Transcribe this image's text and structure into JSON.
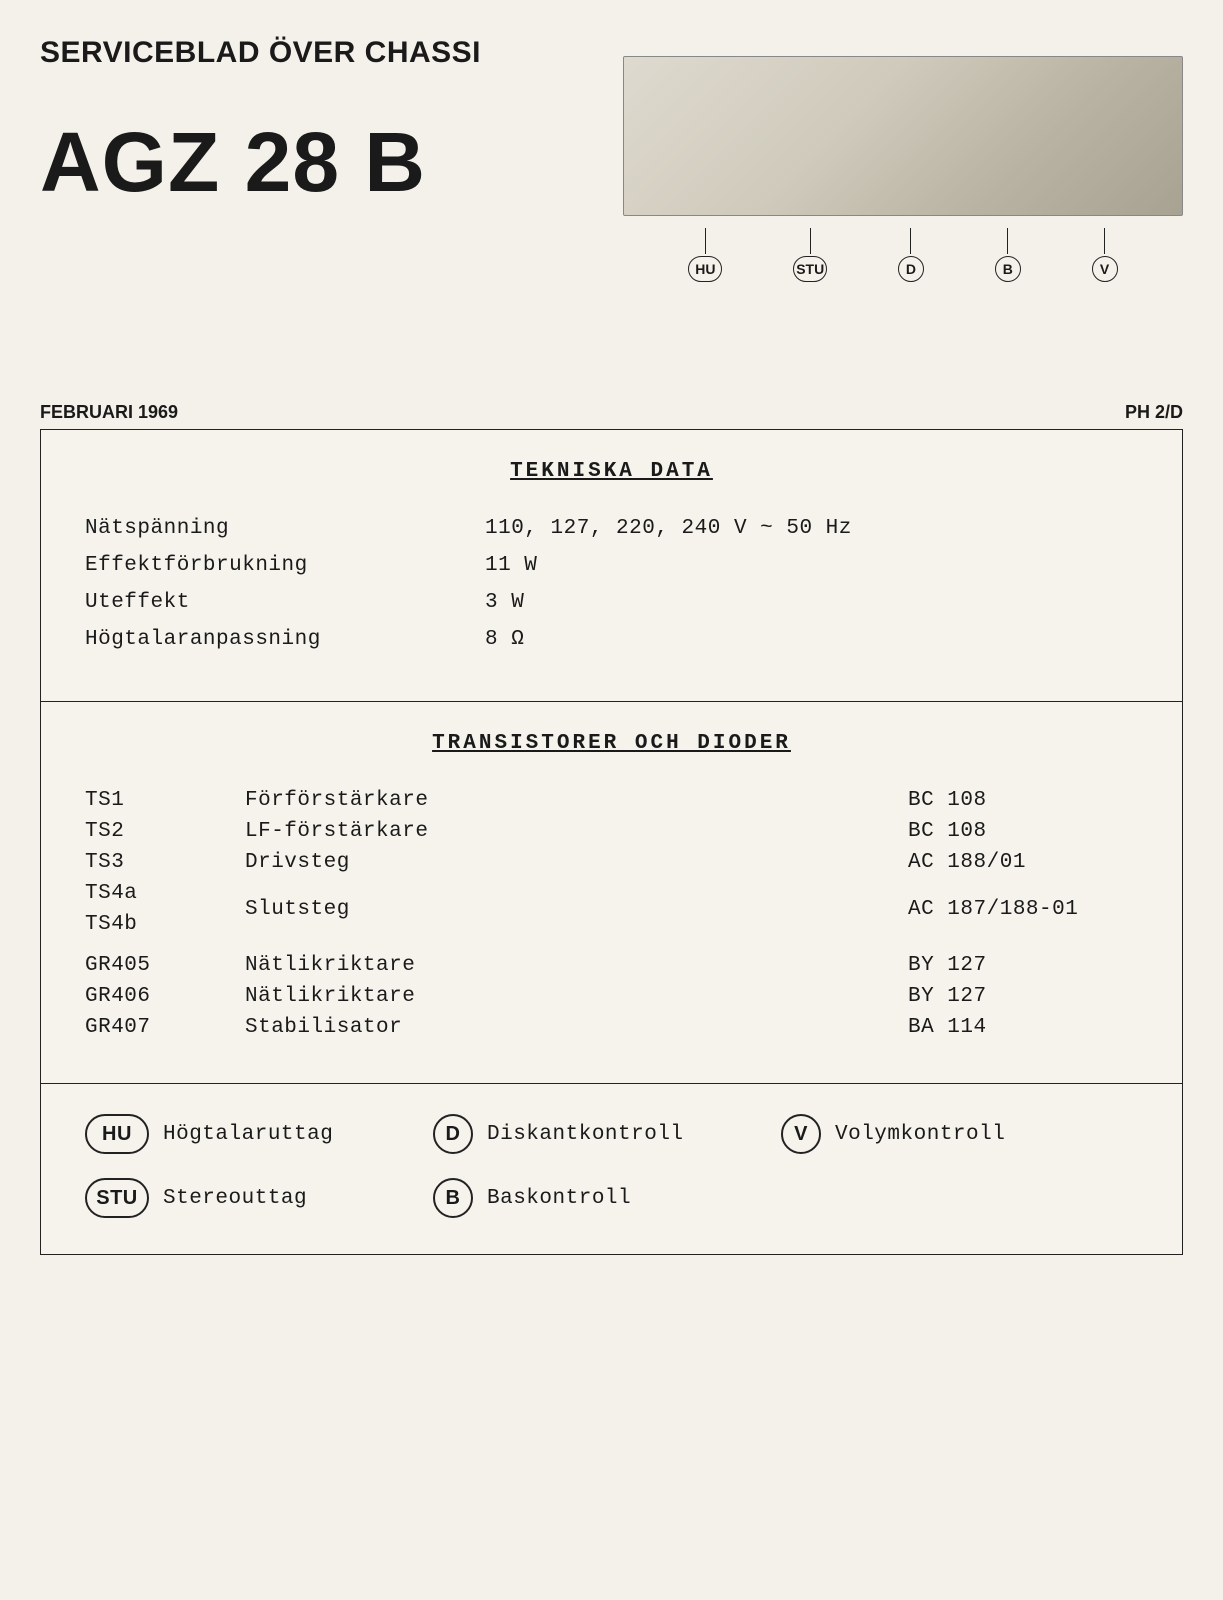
{
  "header": {
    "doc_title": "SERVICEBLAD ÖVER CHASSI",
    "model": "AGZ 28 B",
    "date": "FEBRUARI 1969",
    "code": "PH 2/D"
  },
  "chassi_labels": [
    {
      "sym": "HU",
      "shape": "oval"
    },
    {
      "sym": "STU",
      "shape": "oval"
    },
    {
      "sym": "D",
      "shape": "circ"
    },
    {
      "sym": "B",
      "shape": "circ"
    },
    {
      "sym": "V",
      "shape": "circ"
    }
  ],
  "tekniska": {
    "heading": "TEKNISKA DATA",
    "rows": [
      {
        "label": "Nätspänning",
        "val": "110, 127, 220, 240 V ~ 50 Hz"
      },
      {
        "label": "Effektförbrukning",
        "val": "11 W"
      },
      {
        "label": "Uteffekt",
        "val": "3 W"
      },
      {
        "label": "Högtalaranpassning",
        "val": "8 Ω"
      }
    ]
  },
  "transistors": {
    "heading": "TRANSISTORER OCH DIODER",
    "rows": [
      {
        "ref": "TS1",
        "desc": "Förförstärkare",
        "part": "BC 108"
      },
      {
        "ref": "TS2",
        "desc": "LF-förstärkare",
        "part": "BC 108"
      },
      {
        "ref": "TS3",
        "desc": "Drivsteg",
        "part": "AC 188/01"
      }
    ],
    "group": {
      "refs": [
        "TS4a",
        "TS4b"
      ],
      "desc": "Slutsteg",
      "part": "AC 187/188-01"
    },
    "rows2": [
      {
        "ref": "GR405",
        "desc": "Nätlikriktare",
        "part": "BY 127"
      },
      {
        "ref": "GR406",
        "desc": "Nätlikriktare",
        "part": "BY 127"
      },
      {
        "ref": "GR407",
        "desc": "Stabilisator",
        "part": "BA 114"
      }
    ]
  },
  "legend": [
    {
      "sym": "HU",
      "shape": "oval",
      "label": "Högtalaruttag"
    },
    {
      "sym": "D",
      "shape": "circ",
      "label": "Diskantkontroll"
    },
    {
      "sym": "V",
      "shape": "circ",
      "label": "Volymkontroll"
    },
    {
      "sym": "STU",
      "shape": "oval",
      "label": "Stereouttag"
    },
    {
      "sym": "B",
      "shape": "circ",
      "label": "Baskontroll"
    }
  ],
  "colors": {
    "paper": "#f4f1ea",
    "ink": "#1a1a1a",
    "border": "#222222"
  }
}
